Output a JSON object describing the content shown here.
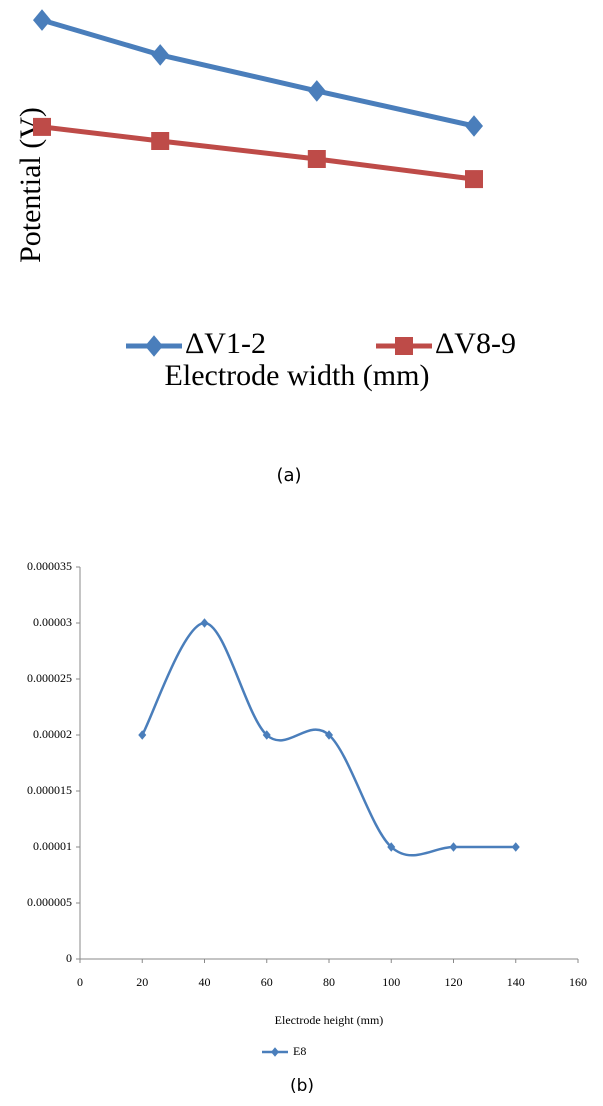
{
  "chart_data": [
    {
      "type": "line",
      "ylabel": "Potential (V)",
      "xlabel": "Electrode  width (mm)",
      "caption": "(a)",
      "xlim": [
        0,
        10
      ],
      "ylim": [
        0,
        10
      ],
      "x": [
        0.7,
        2.67,
        5.28,
        7.9
      ],
      "legend": "bottom",
      "series": [
        {
          "name": "ΔV1-2",
          "color": "#4a7ebb",
          "marker": "diamond",
          "values": [
            9.33,
            8.17,
            6.97,
            5.8
          ]
        },
        {
          "name": "ΔV8-9",
          "color": "#be4b48",
          "marker": "square",
          "values": [
            5.77,
            5.3,
            4.7,
            4.03
          ]
        }
      ]
    },
    {
      "type": "line",
      "smooth": true,
      "xlabel": "Electrode height (mm)",
      "caption": "(b)",
      "xlim": [
        0,
        160
      ],
      "xticks": [
        0,
        20,
        40,
        60,
        80,
        100,
        120,
        140,
        160
      ],
      "ylim": [
        0,
        3.5e-05
      ],
      "yticks": [
        0,
        5e-06,
        1e-05,
        1.5e-05,
        2e-05,
        2.5e-05,
        3e-05,
        3.5e-05
      ],
      "x": [
        20,
        40,
        60,
        80,
        100,
        120,
        140
      ],
      "legend": "bottom",
      "series": [
        {
          "name": "E8",
          "color": "#4a7ebb",
          "marker": "diamond",
          "values": [
            2e-05,
            3e-05,
            2e-05,
            2e-05,
            1e-05,
            1e-05,
            1e-05
          ]
        }
      ]
    }
  ]
}
